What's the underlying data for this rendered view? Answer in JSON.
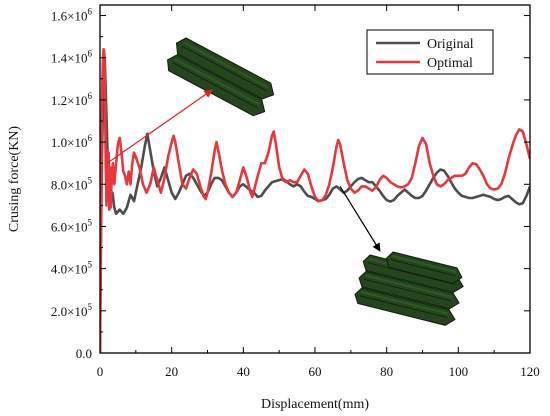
{
  "chart_data": {
    "type": "line",
    "xlabel": "Displacement(mm)",
    "ylabel": "Crusing force(KN)",
    "xlim": [
      0,
      120
    ],
    "ylim": [
      0,
      1650000
    ],
    "x_ticks": [
      {
        "value": 0,
        "label": "0"
      },
      {
        "value": 20,
        "label": "20"
      },
      {
        "value": 40,
        "label": "40"
      },
      {
        "value": 60,
        "label": "60"
      },
      {
        "value": 80,
        "label": "80"
      },
      {
        "value": 100,
        "label": "100"
      },
      {
        "value": 120,
        "label": "120"
      }
    ],
    "y_ticks": [
      {
        "value": 0,
        "mantissa": "0.0",
        "times": "",
        "exponent": ""
      },
      {
        "value": 200000,
        "mantissa": "2.0",
        "times": "×10",
        "exponent": "5"
      },
      {
        "value": 400000,
        "mantissa": "4.0",
        "times": "×10",
        "exponent": "5"
      },
      {
        "value": 600000,
        "mantissa": "6.0",
        "times": "×10",
        "exponent": "5"
      },
      {
        "value": 800000,
        "mantissa": "8.0",
        "times": "×10",
        "exponent": "5"
      },
      {
        "value": 1000000,
        "mantissa": "1.0",
        "times": "×10",
        "exponent": "6"
      },
      {
        "value": 1200000,
        "mantissa": "1.2",
        "times": "×10",
        "exponent": "6"
      },
      {
        "value": 1400000,
        "mantissa": "1.4",
        "times": "×10",
        "exponent": "6"
      },
      {
        "value": 1600000,
        "mantissa": "1.6",
        "times": "×10",
        "exponent": "6"
      }
    ],
    "legend_position": "top-right",
    "grid": false,
    "series": [
      {
        "name": "Original",
        "color": "#4d4d4d",
        "points": [
          [
            0,
            0
          ],
          [
            0.3,
            600000
          ],
          [
            0.6,
            1000000
          ],
          [
            1.0,
            1300000
          ],
          [
            1.3,
            1400000
          ],
          [
            1.6,
            1250000
          ],
          [
            2.0,
            1000000
          ],
          [
            2.5,
            780000
          ],
          [
            3.0,
            720000
          ],
          [
            3.5,
            760000
          ],
          [
            4.0,
            690000
          ],
          [
            4.5,
            660000
          ],
          [
            5.5,
            680000
          ],
          [
            6.5,
            660000
          ],
          [
            7.5,
            690000
          ],
          [
            8.5,
            750000
          ],
          [
            9.5,
            720000
          ],
          [
            10.5,
            800000
          ],
          [
            11.5,
            880000
          ],
          [
            12.5,
            980000
          ],
          [
            13.2,
            1040000
          ],
          [
            14.0,
            960000
          ],
          [
            15.0,
            860000
          ],
          [
            16.0,
            790000
          ],
          [
            17.0,
            830000
          ],
          [
            18.0,
            880000
          ],
          [
            19.0,
            820000
          ],
          [
            20.0,
            760000
          ],
          [
            21.0,
            730000
          ],
          [
            22.0,
            760000
          ],
          [
            23.0,
            800000
          ],
          [
            24.0,
            840000
          ],
          [
            25.0,
            850000
          ],
          [
            26.0,
            830000
          ],
          [
            27.0,
            800000
          ],
          [
            28.0,
            770000
          ],
          [
            29.0,
            745000
          ],
          [
            30.0,
            760000
          ],
          [
            31.0,
            800000
          ],
          [
            32.0,
            830000
          ],
          [
            33.0,
            830000
          ],
          [
            34.0,
            820000
          ],
          [
            35.0,
            790000
          ],
          [
            36.0,
            760000
          ],
          [
            37.0,
            740000
          ],
          [
            38.0,
            760000
          ],
          [
            39.0,
            790000
          ],
          [
            40.0,
            800000
          ],
          [
            41.0,
            785000
          ],
          [
            42.0,
            770000
          ],
          [
            43.0,
            760000
          ],
          [
            44.0,
            740000
          ],
          [
            45.0,
            745000
          ],
          [
            46.0,
            770000
          ],
          [
            47.0,
            790000
          ],
          [
            48.0,
            810000
          ],
          [
            49.0,
            815000
          ],
          [
            50.0,
            820000
          ],
          [
            51.0,
            825000
          ],
          [
            52.0,
            815000
          ],
          [
            53.0,
            800000
          ],
          [
            54.0,
            790000
          ],
          [
            55.0,
            800000
          ],
          [
            56.0,
            790000
          ],
          [
            57.0,
            765000
          ],
          [
            58.0,
            745000
          ],
          [
            59.0,
            740000
          ],
          [
            60.0,
            730000
          ],
          [
            61.0,
            720000
          ],
          [
            62.0,
            725000
          ],
          [
            63.0,
            730000
          ],
          [
            64.0,
            750000
          ],
          [
            65.0,
            780000
          ],
          [
            66.0,
            790000
          ],
          [
            67.0,
            775000
          ],
          [
            68.0,
            760000
          ],
          [
            69.0,
            770000
          ],
          [
            70.0,
            790000
          ],
          [
            71.0,
            810000
          ],
          [
            72.0,
            825000
          ],
          [
            73.0,
            830000
          ],
          [
            74.0,
            820000
          ],
          [
            75.0,
            810000
          ],
          [
            76.0,
            810000
          ],
          [
            77.0,
            790000
          ],
          [
            78.0,
            770000
          ],
          [
            79.0,
            745000
          ],
          [
            80.0,
            725000
          ],
          [
            81.0,
            718000
          ],
          [
            82.0,
            725000
          ],
          [
            83.0,
            745000
          ],
          [
            84.0,
            760000
          ],
          [
            85.0,
            775000
          ],
          [
            86.0,
            760000
          ],
          [
            87.0,
            745000
          ],
          [
            88.0,
            735000
          ],
          [
            89.0,
            735000
          ],
          [
            90.0,
            745000
          ],
          [
            91.0,
            770000
          ],
          [
            92.0,
            800000
          ],
          [
            93.0,
            830000
          ],
          [
            94.0,
            855000
          ],
          [
            95.0,
            870000
          ],
          [
            96.0,
            865000
          ],
          [
            97.0,
            840000
          ],
          [
            98.0,
            810000
          ],
          [
            99.0,
            780000
          ],
          [
            100.0,
            760000
          ],
          [
            101.0,
            745000
          ],
          [
            102.0,
            740000
          ],
          [
            103.0,
            735000
          ],
          [
            104.0,
            735000
          ],
          [
            105.0,
            740000
          ],
          [
            106.0,
            745000
          ],
          [
            107.0,
            750000
          ],
          [
            108.0,
            745000
          ],
          [
            109.0,
            740000
          ],
          [
            110.0,
            730000
          ],
          [
            111.0,
            725000
          ],
          [
            112.0,
            730000
          ],
          [
            113.0,
            740000
          ],
          [
            114.0,
            745000
          ],
          [
            115.0,
            730000
          ],
          [
            116.0,
            715000
          ],
          [
            117.0,
            705000
          ],
          [
            118.0,
            710000
          ],
          [
            119.0,
            745000
          ],
          [
            120.0,
            790000
          ]
        ]
      },
      {
        "name": "Optimal",
        "color": "#e8383d",
        "points": [
          [
            0,
            0
          ],
          [
            0.2,
            500000
          ],
          [
            0.4,
            950000
          ],
          [
            0.6,
            1250000
          ],
          [
            0.8,
            1380000
          ],
          [
            1.0,
            1440000
          ],
          [
            1.2,
            1420000
          ],
          [
            1.4,
            1250000
          ],
          [
            1.6,
            900000
          ],
          [
            1.8,
            700000
          ],
          [
            2.0,
            960000
          ],
          [
            2.2,
            730000
          ],
          [
            2.4,
            950000
          ],
          [
            2.6,
            680000
          ],
          [
            2.8,
            880000
          ],
          [
            3.0,
            690000
          ],
          [
            3.3,
            850000
          ],
          [
            3.6,
            900000
          ],
          [
            4.0,
            800000
          ],
          [
            4.5,
            900000
          ],
          [
            5.0,
            990000
          ],
          [
            5.5,
            1020000
          ],
          [
            6.0,
            950000
          ],
          [
            6.5,
            860000
          ],
          [
            7.0,
            840000
          ],
          [
            7.5,
            800000
          ],
          [
            8.0,
            860000
          ],
          [
            8.5,
            800000
          ],
          [
            9.0,
            900000
          ],
          [
            9.5,
            950000
          ],
          [
            10.0,
            930000
          ],
          [
            11.0,
            880000
          ],
          [
            12.0,
            800000
          ],
          [
            13.0,
            760000
          ],
          [
            14.0,
            800000
          ],
          [
            15.0,
            880000
          ],
          [
            16.0,
            820000
          ],
          [
            17.0,
            760000
          ],
          [
            18.0,
            830000
          ],
          [
            19.0,
            930000
          ],
          [
            20.0,
            1000000
          ],
          [
            20.5,
            1030000
          ],
          [
            21.0,
            1000000
          ],
          [
            22.0,
            900000
          ],
          [
            23.0,
            800000
          ],
          [
            24.0,
            780000
          ],
          [
            25.0,
            830000
          ],
          [
            26.0,
            870000
          ],
          [
            27.0,
            850000
          ],
          [
            28.0,
            790000
          ],
          [
            29.0,
            740000
          ],
          [
            29.5,
            730000
          ],
          [
            30.0,
            760000
          ],
          [
            31.0,
            850000
          ],
          [
            32.0,
            960000
          ],
          [
            32.5,
            1000000
          ],
          [
            33.0,
            960000
          ],
          [
            34.0,
            870000
          ],
          [
            35.0,
            800000
          ],
          [
            36.0,
            760000
          ],
          [
            37.0,
            740000
          ],
          [
            38.0,
            760000
          ],
          [
            39.0,
            820000
          ],
          [
            40.0,
            880000
          ],
          [
            41.0,
            830000
          ],
          [
            42.0,
            760000
          ],
          [
            42.5,
            740000
          ],
          [
            43.0,
            770000
          ],
          [
            44.0,
            840000
          ],
          [
            45.0,
            900000
          ],
          [
            46.0,
            900000
          ],
          [
            47.0,
            950000
          ],
          [
            48.0,
            1030000
          ],
          [
            48.5,
            1050000
          ],
          [
            49.0,
            1000000
          ],
          [
            50.0,
            880000
          ],
          [
            51.0,
            820000
          ],
          [
            52.0,
            810000
          ],
          [
            53.0,
            820000
          ],
          [
            54.0,
            810000
          ],
          [
            55.0,
            810000
          ],
          [
            56.0,
            840000
          ],
          [
            57.0,
            870000
          ],
          [
            58.0,
            850000
          ],
          [
            59.0,
            790000
          ],
          [
            60.0,
            740000
          ],
          [
            61.0,
            720000
          ],
          [
            62.0,
            725000
          ],
          [
            63.0,
            750000
          ],
          [
            64.0,
            800000
          ],
          [
            65.0,
            880000
          ],
          [
            66.0,
            980000
          ],
          [
            66.5,
            1010000
          ],
          [
            67.0,
            990000
          ],
          [
            68.0,
            900000
          ],
          [
            69.0,
            820000
          ],
          [
            70.0,
            780000
          ],
          [
            71.0,
            760000
          ],
          [
            72.0,
            770000
          ],
          [
            73.0,
            790000
          ],
          [
            74.0,
            790000
          ],
          [
            75.0,
            780000
          ],
          [
            76.0,
            770000
          ],
          [
            77.0,
            785000
          ],
          [
            78.0,
            820000
          ],
          [
            79.0,
            840000
          ],
          [
            80.0,
            830000
          ],
          [
            81.0,
            810000
          ],
          [
            82.0,
            800000
          ],
          [
            83.0,
            790000
          ],
          [
            84.0,
            785000
          ],
          [
            85.0,
            790000
          ],
          [
            86.0,
            800000
          ],
          [
            87.0,
            830000
          ],
          [
            88.0,
            900000
          ],
          [
            89.0,
            980000
          ],
          [
            90.0,
            1020000
          ],
          [
            91.0,
            990000
          ],
          [
            92.0,
            900000
          ],
          [
            93.0,
            840000
          ],
          [
            94.0,
            800000
          ],
          [
            95.0,
            790000
          ],
          [
            96.0,
            800000
          ],
          [
            97.0,
            820000
          ],
          [
            98.0,
            830000
          ],
          [
            99.0,
            840000
          ],
          [
            100.0,
            840000
          ],
          [
            101.0,
            840000
          ],
          [
            102.0,
            850000
          ],
          [
            103.0,
            880000
          ],
          [
            104.0,
            900000
          ],
          [
            105.0,
            895000
          ],
          [
            106.0,
            870000
          ],
          [
            107.0,
            840000
          ],
          [
            108.0,
            800000
          ],
          [
            109.0,
            780000
          ],
          [
            110.0,
            775000
          ],
          [
            111.0,
            780000
          ],
          [
            112.0,
            800000
          ],
          [
            113.0,
            850000
          ],
          [
            114.0,
            920000
          ],
          [
            115.0,
            980000
          ],
          [
            116.0,
            1030000
          ],
          [
            117.0,
            1060000
          ],
          [
            118.0,
            1050000
          ],
          [
            119.0,
            990000
          ],
          [
            120.0,
            920000
          ]
        ]
      }
    ]
  },
  "illustrations": {
    "top_tube": {
      "fill": "#24451d",
      "edge": "#0d1d0a",
      "highlight": "#2f5a27",
      "arrow_color": "#e02020",
      "arrow_target": {
        "x": 2,
        "y": 900000
      }
    },
    "bottom_tube": {
      "fill": "#24451d",
      "edge": "#0d1d0a",
      "highlight": "#2f5a27",
      "arrow_color": "#000000",
      "arrow_target": {
        "x": 67,
        "y": 790000
      }
    }
  }
}
